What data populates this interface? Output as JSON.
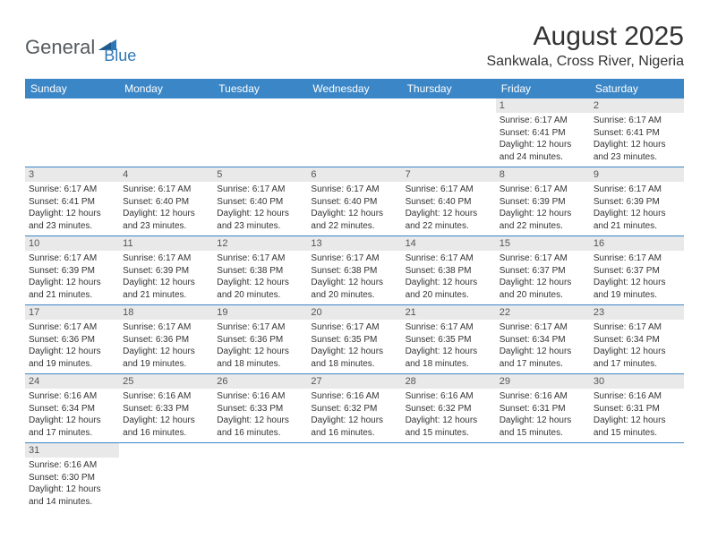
{
  "logo": {
    "part1": "General",
    "part2": "Blue"
  },
  "title": "August 2025",
  "location": "Sankwala, Cross River, Nigeria",
  "colors": {
    "header_bg": "#3b86c6",
    "header_text": "#ffffff",
    "daynum_bg": "#e9e9e9",
    "row_border": "#3b86c6",
    "logo_gray": "#555a5e",
    "logo_blue": "#2f78b6"
  },
  "weekdays": [
    "Sunday",
    "Monday",
    "Tuesday",
    "Wednesday",
    "Thursday",
    "Friday",
    "Saturday"
  ],
  "weeks": [
    [
      null,
      null,
      null,
      null,
      null,
      {
        "n": "1",
        "sr": "Sunrise: 6:17 AM",
        "ss": "Sunset: 6:41 PM",
        "dl1": "Daylight: 12 hours",
        "dl2": "and 24 minutes."
      },
      {
        "n": "2",
        "sr": "Sunrise: 6:17 AM",
        "ss": "Sunset: 6:41 PM",
        "dl1": "Daylight: 12 hours",
        "dl2": "and 23 minutes."
      }
    ],
    [
      {
        "n": "3",
        "sr": "Sunrise: 6:17 AM",
        "ss": "Sunset: 6:41 PM",
        "dl1": "Daylight: 12 hours",
        "dl2": "and 23 minutes."
      },
      {
        "n": "4",
        "sr": "Sunrise: 6:17 AM",
        "ss": "Sunset: 6:40 PM",
        "dl1": "Daylight: 12 hours",
        "dl2": "and 23 minutes."
      },
      {
        "n": "5",
        "sr": "Sunrise: 6:17 AM",
        "ss": "Sunset: 6:40 PM",
        "dl1": "Daylight: 12 hours",
        "dl2": "and 23 minutes."
      },
      {
        "n": "6",
        "sr": "Sunrise: 6:17 AM",
        "ss": "Sunset: 6:40 PM",
        "dl1": "Daylight: 12 hours",
        "dl2": "and 22 minutes."
      },
      {
        "n": "7",
        "sr": "Sunrise: 6:17 AM",
        "ss": "Sunset: 6:40 PM",
        "dl1": "Daylight: 12 hours",
        "dl2": "and 22 minutes."
      },
      {
        "n": "8",
        "sr": "Sunrise: 6:17 AM",
        "ss": "Sunset: 6:39 PM",
        "dl1": "Daylight: 12 hours",
        "dl2": "and 22 minutes."
      },
      {
        "n": "9",
        "sr": "Sunrise: 6:17 AM",
        "ss": "Sunset: 6:39 PM",
        "dl1": "Daylight: 12 hours",
        "dl2": "and 21 minutes."
      }
    ],
    [
      {
        "n": "10",
        "sr": "Sunrise: 6:17 AM",
        "ss": "Sunset: 6:39 PM",
        "dl1": "Daylight: 12 hours",
        "dl2": "and 21 minutes."
      },
      {
        "n": "11",
        "sr": "Sunrise: 6:17 AM",
        "ss": "Sunset: 6:39 PM",
        "dl1": "Daylight: 12 hours",
        "dl2": "and 21 minutes."
      },
      {
        "n": "12",
        "sr": "Sunrise: 6:17 AM",
        "ss": "Sunset: 6:38 PM",
        "dl1": "Daylight: 12 hours",
        "dl2": "and 20 minutes."
      },
      {
        "n": "13",
        "sr": "Sunrise: 6:17 AM",
        "ss": "Sunset: 6:38 PM",
        "dl1": "Daylight: 12 hours",
        "dl2": "and 20 minutes."
      },
      {
        "n": "14",
        "sr": "Sunrise: 6:17 AM",
        "ss": "Sunset: 6:38 PM",
        "dl1": "Daylight: 12 hours",
        "dl2": "and 20 minutes."
      },
      {
        "n": "15",
        "sr": "Sunrise: 6:17 AM",
        "ss": "Sunset: 6:37 PM",
        "dl1": "Daylight: 12 hours",
        "dl2": "and 20 minutes."
      },
      {
        "n": "16",
        "sr": "Sunrise: 6:17 AM",
        "ss": "Sunset: 6:37 PM",
        "dl1": "Daylight: 12 hours",
        "dl2": "and 19 minutes."
      }
    ],
    [
      {
        "n": "17",
        "sr": "Sunrise: 6:17 AM",
        "ss": "Sunset: 6:36 PM",
        "dl1": "Daylight: 12 hours",
        "dl2": "and 19 minutes."
      },
      {
        "n": "18",
        "sr": "Sunrise: 6:17 AM",
        "ss": "Sunset: 6:36 PM",
        "dl1": "Daylight: 12 hours",
        "dl2": "and 19 minutes."
      },
      {
        "n": "19",
        "sr": "Sunrise: 6:17 AM",
        "ss": "Sunset: 6:36 PM",
        "dl1": "Daylight: 12 hours",
        "dl2": "and 18 minutes."
      },
      {
        "n": "20",
        "sr": "Sunrise: 6:17 AM",
        "ss": "Sunset: 6:35 PM",
        "dl1": "Daylight: 12 hours",
        "dl2": "and 18 minutes."
      },
      {
        "n": "21",
        "sr": "Sunrise: 6:17 AM",
        "ss": "Sunset: 6:35 PM",
        "dl1": "Daylight: 12 hours",
        "dl2": "and 18 minutes."
      },
      {
        "n": "22",
        "sr": "Sunrise: 6:17 AM",
        "ss": "Sunset: 6:34 PM",
        "dl1": "Daylight: 12 hours",
        "dl2": "and 17 minutes."
      },
      {
        "n": "23",
        "sr": "Sunrise: 6:17 AM",
        "ss": "Sunset: 6:34 PM",
        "dl1": "Daylight: 12 hours",
        "dl2": "and 17 minutes."
      }
    ],
    [
      {
        "n": "24",
        "sr": "Sunrise: 6:16 AM",
        "ss": "Sunset: 6:34 PM",
        "dl1": "Daylight: 12 hours",
        "dl2": "and 17 minutes."
      },
      {
        "n": "25",
        "sr": "Sunrise: 6:16 AM",
        "ss": "Sunset: 6:33 PM",
        "dl1": "Daylight: 12 hours",
        "dl2": "and 16 minutes."
      },
      {
        "n": "26",
        "sr": "Sunrise: 6:16 AM",
        "ss": "Sunset: 6:33 PM",
        "dl1": "Daylight: 12 hours",
        "dl2": "and 16 minutes."
      },
      {
        "n": "27",
        "sr": "Sunrise: 6:16 AM",
        "ss": "Sunset: 6:32 PM",
        "dl1": "Daylight: 12 hours",
        "dl2": "and 16 minutes."
      },
      {
        "n": "28",
        "sr": "Sunrise: 6:16 AM",
        "ss": "Sunset: 6:32 PM",
        "dl1": "Daylight: 12 hours",
        "dl2": "and 15 minutes."
      },
      {
        "n": "29",
        "sr": "Sunrise: 6:16 AM",
        "ss": "Sunset: 6:31 PM",
        "dl1": "Daylight: 12 hours",
        "dl2": "and 15 minutes."
      },
      {
        "n": "30",
        "sr": "Sunrise: 6:16 AM",
        "ss": "Sunset: 6:31 PM",
        "dl1": "Daylight: 12 hours",
        "dl2": "and 15 minutes."
      }
    ],
    [
      {
        "n": "31",
        "sr": "Sunrise: 6:16 AM",
        "ss": "Sunset: 6:30 PM",
        "dl1": "Daylight: 12 hours",
        "dl2": "and 14 minutes."
      },
      null,
      null,
      null,
      null,
      null,
      null
    ]
  ]
}
